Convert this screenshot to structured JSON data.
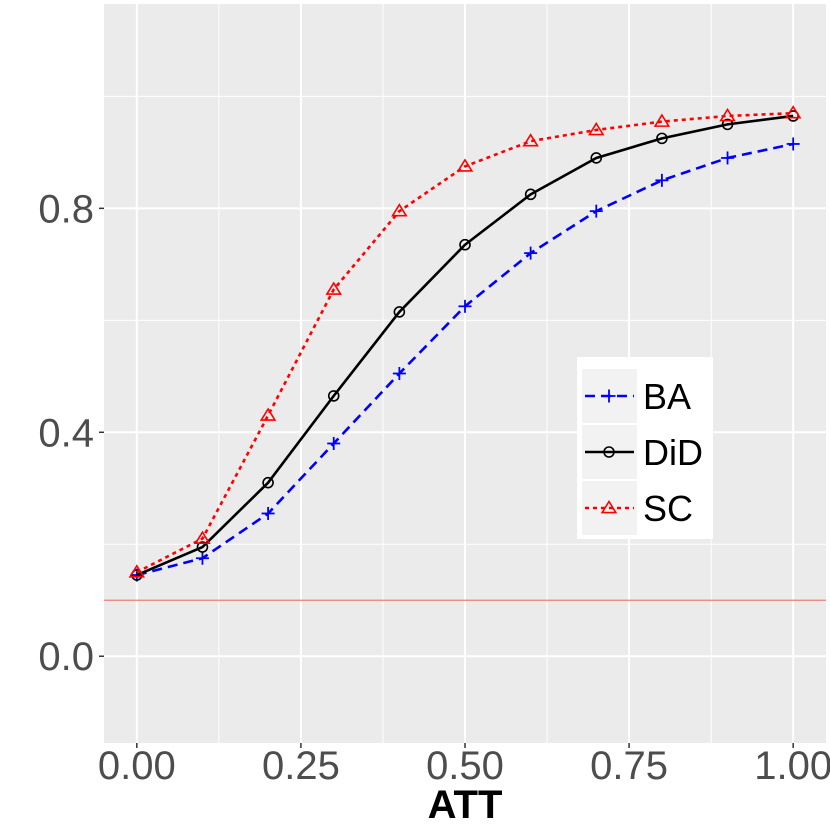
{
  "chart_data": {
    "type": "line",
    "title": "",
    "xlabel": "ATT",
    "ylabel": "",
    "xlim": [
      -0.05,
      1.05
    ],
    "ylim": [
      -0.155,
      1.165
    ],
    "x_ticks": [
      0.0,
      0.25,
      0.5,
      0.75,
      1.0
    ],
    "x_tick_labels": [
      "0.00",
      "0.25",
      "0.50",
      "0.75",
      "1.00"
    ],
    "y_ticks": [
      0.0,
      0.4,
      0.8
    ],
    "y_tick_labels": [
      "0.0",
      "0.4",
      "0.8"
    ],
    "grid": true,
    "legend_position": "right",
    "reference_line": {
      "y": 0.1,
      "color": "#e8827a"
    },
    "x": [
      0.0,
      0.1,
      0.2,
      0.3,
      0.4,
      0.5,
      0.6,
      0.7,
      0.8,
      0.9,
      1.0
    ],
    "series": [
      {
        "name": "BA",
        "color": "#0000ff",
        "dash": "10,6",
        "marker": "plus",
        "values": [
          0.145,
          0.175,
          0.255,
          0.38,
          0.505,
          0.625,
          0.72,
          0.795,
          0.85,
          0.89,
          0.915
        ]
      },
      {
        "name": "DiD",
        "color": "#000000",
        "dash": "",
        "marker": "circle",
        "values": [
          0.145,
          0.195,
          0.31,
          0.465,
          0.615,
          0.735,
          0.825,
          0.89,
          0.925,
          0.95,
          0.965
        ]
      },
      {
        "name": "SC",
        "color": "#ff0000",
        "dash": "4,4",
        "marker": "triangle",
        "values": [
          0.15,
          0.21,
          0.43,
          0.655,
          0.795,
          0.875,
          0.92,
          0.94,
          0.955,
          0.965,
          0.97
        ]
      }
    ]
  }
}
